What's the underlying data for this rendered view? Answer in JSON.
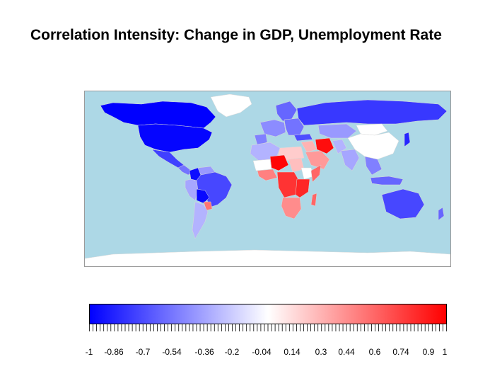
{
  "title": "Correlation Intensity: Change in GDP, Unemployment Rate",
  "legend": {
    "min": -1,
    "max": 1,
    "low_color": "#0000ff",
    "mid_color": "#ffffff",
    "high_color": "#ff0000",
    "tick_labels": [
      "-1",
      "-0.86",
      "-0.7",
      "-0.54",
      "-0.36",
      "-0.2",
      "-0.04",
      "0.14",
      "0.3",
      "0.44",
      "0.6",
      "0.74",
      "0.9",
      "1"
    ]
  },
  "map": {
    "ocean_color": "#add8e6",
    "no_data_color": "#ffffff",
    "regions": [
      {
        "name": "canada",
        "value": -1.0
      },
      {
        "name": "united-states",
        "value": -0.98
      },
      {
        "name": "mexico",
        "value": -0.75
      },
      {
        "name": "central-america",
        "value": -0.55
      },
      {
        "name": "greenland",
        "value": null
      },
      {
        "name": "colombia",
        "value": -0.95
      },
      {
        "name": "venezuela",
        "value": -0.4
      },
      {
        "name": "peru",
        "value": -0.35
      },
      {
        "name": "brazil",
        "value": -0.72
      },
      {
        "name": "bolivia",
        "value": -0.97
      },
      {
        "name": "paraguay",
        "value": 0.55
      },
      {
        "name": "argentina",
        "value": -0.3
      },
      {
        "name": "scandinavia",
        "value": -0.6
      },
      {
        "name": "western-europe",
        "value": -0.45
      },
      {
        "name": "iberia",
        "value": -0.5
      },
      {
        "name": "eastern-europe",
        "value": -0.55
      },
      {
        "name": "russia",
        "value": -0.78
      },
      {
        "name": "kazakhstan",
        "value": -0.4
      },
      {
        "name": "mongolia",
        "value": null
      },
      {
        "name": "china",
        "value": null
      },
      {
        "name": "japan",
        "value": -0.85
      },
      {
        "name": "turkey",
        "value": -0.7
      },
      {
        "name": "iran",
        "value": 0.95
      },
      {
        "name": "middle-east",
        "value": 0.3
      },
      {
        "name": "arabia",
        "value": 0.4
      },
      {
        "name": "pakistan",
        "value": -0.3
      },
      {
        "name": "india",
        "value": -0.35
      },
      {
        "name": "southeast-asia",
        "value": -0.5
      },
      {
        "name": "indonesia",
        "value": -0.6
      },
      {
        "name": "north-africa-west",
        "value": -0.3
      },
      {
        "name": "north-africa-east",
        "value": 0.2
      },
      {
        "name": "sahel-west",
        "value": null
      },
      {
        "name": "niger-chad",
        "value": 0.98
      },
      {
        "name": "sudan",
        "value": 0.25
      },
      {
        "name": "ethiopia",
        "value": null
      },
      {
        "name": "somalia",
        "value": 0.6
      },
      {
        "name": "west-africa",
        "value": 0.5
      },
      {
        "name": "central-africa",
        "value": 0.8
      },
      {
        "name": "east-africa",
        "value": 0.85
      },
      {
        "name": "southern-africa",
        "value": 0.45
      },
      {
        "name": "madagascar",
        "value": 0.6
      },
      {
        "name": "australia",
        "value": -0.72
      },
      {
        "name": "new-zealand",
        "value": -0.6
      },
      {
        "name": "antarctica",
        "value": null
      }
    ]
  }
}
